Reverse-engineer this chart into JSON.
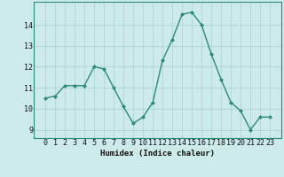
{
  "x": [
    0,
    1,
    2,
    3,
    4,
    5,
    6,
    7,
    8,
    9,
    10,
    11,
    12,
    13,
    14,
    15,
    16,
    17,
    18,
    19,
    20,
    21,
    22,
    23
  ],
  "y": [
    10.5,
    10.6,
    11.1,
    11.1,
    11.1,
    12.0,
    11.9,
    11.0,
    10.1,
    9.3,
    9.6,
    10.3,
    12.3,
    13.3,
    14.5,
    14.6,
    14.0,
    12.6,
    11.4,
    10.3,
    9.9,
    9.0,
    9.6,
    9.6
  ],
  "line_color": "#2e8b74",
  "marker": "D",
  "marker_size": 2.0,
  "bg_color": "#cceae8",
  "grid_color": "#aad4d0",
  "xlabel": "Humidex (Indice chaleur)",
  "ylim": [
    8.6,
    15.1
  ],
  "yticks": [
    9,
    10,
    11,
    12,
    13,
    14
  ],
  "xticks": [
    0,
    1,
    2,
    3,
    4,
    5,
    6,
    7,
    8,
    9,
    10,
    11,
    12,
    13,
    14,
    15,
    16,
    17,
    18,
    19,
    20,
    21,
    22,
    23
  ],
  "xlabel_fontsize": 6.5,
  "tick_fontsize": 6.0,
  "line_width": 1.0,
  "spine_color": "#2e8b74",
  "tick_color": "#2e8b74"
}
